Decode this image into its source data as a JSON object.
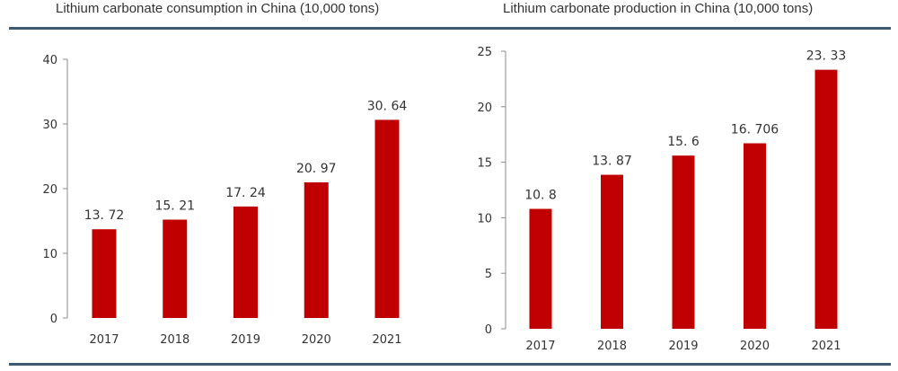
{
  "chart_data": [
    {
      "type": "bar",
      "title": "Lithium carbonate consumption in China (10,000 tons)",
      "categories": [
        "2017",
        "2018",
        "2019",
        "2020",
        "2021"
      ],
      "values": [
        13.72,
        15.21,
        17.24,
        20.97,
        30.64
      ],
      "value_labels": [
        "13. 72",
        "15. 21",
        "17. 24",
        "20. 97",
        "30. 64"
      ],
      "ylim": [
        0,
        40
      ],
      "yticks": [
        0,
        10,
        20,
        30,
        40
      ],
      "xlabel": "",
      "ylabel": "",
      "grid": false,
      "bar_color": "#c00000"
    },
    {
      "type": "bar",
      "title": "Lithium carbonate production in China (10,000 tons)",
      "categories": [
        "2017",
        "2018",
        "2019",
        "2020",
        "2021"
      ],
      "values": [
        10.8,
        13.87,
        15.6,
        16.706,
        23.33
      ],
      "value_labels": [
        "10. 8",
        "13. 87",
        "15. 6",
        "16. 706",
        "23. 33"
      ],
      "ylim": [
        0,
        25
      ],
      "yticks": [
        0,
        5,
        10,
        15,
        20,
        25
      ],
      "xlabel": "",
      "ylabel": "",
      "grid": false,
      "bar_color": "#c00000"
    }
  ]
}
